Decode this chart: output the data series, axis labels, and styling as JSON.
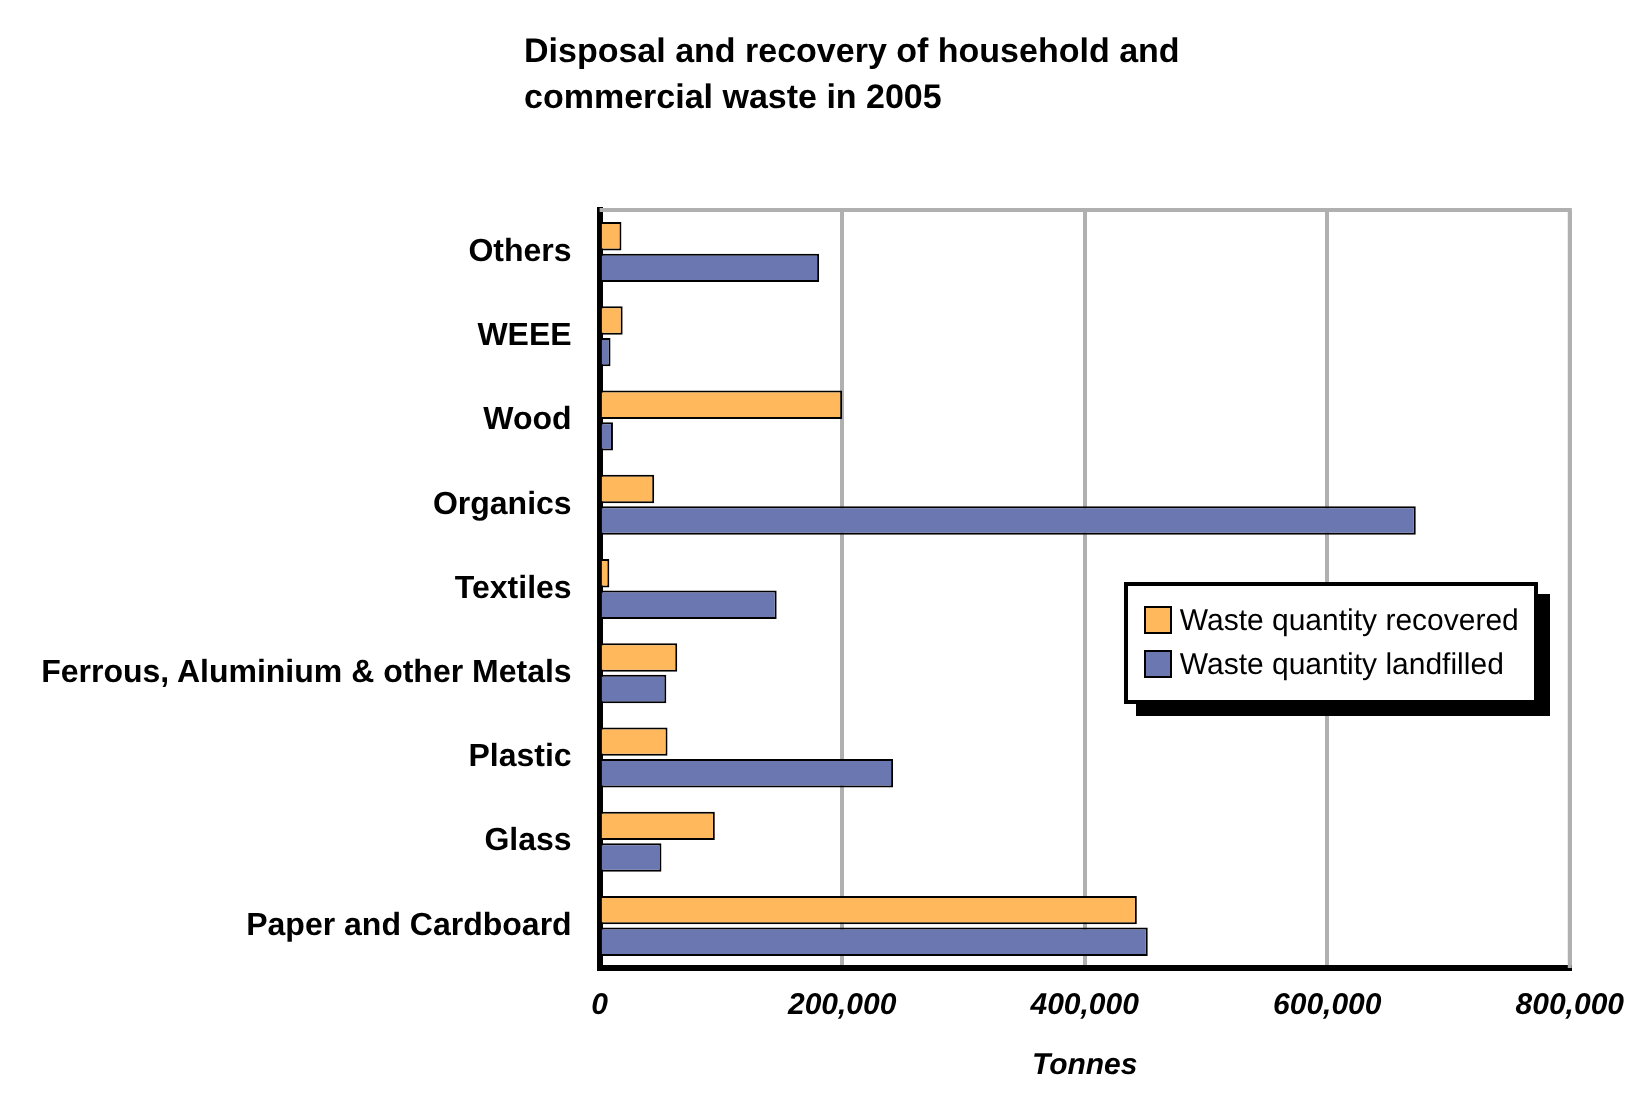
{
  "chart_data": {
    "type": "bar",
    "orientation": "horizontal",
    "title": "Disposal and recovery of household and commercial waste in 2005",
    "xlabel": "Tonnes",
    "categories": [
      "Others",
      "WEEE",
      "Wood",
      "Organics",
      "Textiles",
      "Ferrous, Aluminium & other Metals",
      "Plastic",
      "Glass",
      "Paper and Cardboard"
    ],
    "series": [
      {
        "name": "Waste quantity recovered",
        "color": "#ffb85c",
        "values": [
          18000,
          19000,
          200000,
          45000,
          8000,
          64000,
          56000,
          95000,
          443000
        ]
      },
      {
        "name": "Waste quantity landfilled",
        "color": "#6b77b0",
        "values": [
          181000,
          9000,
          11000,
          673000,
          146000,
          55000,
          242000,
          51000,
          452000
        ]
      }
    ],
    "xlim": [
      0,
      800000
    ],
    "xticks": [
      {
        "value": 0,
        "label": "0"
      },
      {
        "value": 200000,
        "label": "200,000"
      },
      {
        "value": 400000,
        "label": "400,000"
      },
      {
        "value": 600000,
        "label": "600,000"
      },
      {
        "value": 800000,
        "label": "800,000"
      }
    ],
    "grid": "x",
    "legend": "right"
  }
}
